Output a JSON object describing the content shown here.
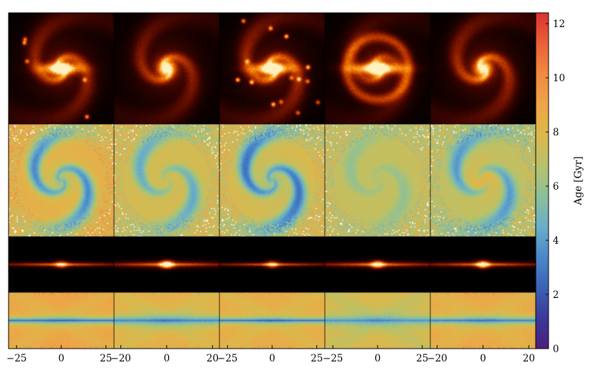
{
  "chart_data": {
    "type": "heatmap",
    "panel_grid": {
      "rows": 4,
      "columns": 5
    },
    "row_content": [
      "face-on surface brightness",
      "face-on stellar age",
      "edge-on surface brightness",
      "edge-on stellar age"
    ],
    "x_ticks_per_column": [
      [
        -25,
        0,
        25
      ],
      [
        -20,
        0,
        20
      ],
      [
        -25,
        0,
        25
      ],
      [
        -25,
        0,
        25
      ],
      [
        -20,
        0,
        20
      ]
    ],
    "x_ranges_per_column": [
      [
        -29.5,
        29.5
      ],
      [
        -23,
        23
      ],
      [
        -29.5,
        29.5
      ],
      [
        -29.5,
        29.5
      ],
      [
        -23,
        23
      ]
    ],
    "galaxies": [
      {
        "face_morphology": "barred",
        "bar_width": 1.0,
        "bulge": 0.55,
        "arm_strength": 0.8,
        "clumps": 5,
        "age_center": 5.6,
        "age_arms": 3.5,
        "age_outskirt": 8.5,
        "edge_thickness": 0.7,
        "edge_age_disk": 2.6,
        "edge_age_halo": 9.0
      },
      {
        "face_morphology": "spiral",
        "bar_width": 0.0,
        "bulge": 1.0,
        "arm_strength": 0.7,
        "clumps": 0,
        "age_center": 7.4,
        "age_arms": 3.8,
        "age_outskirt": 7.6,
        "edge_thickness": 1.0,
        "edge_age_disk": 3.2,
        "edge_age_halo": 8.4
      },
      {
        "face_morphology": "barred-clumpy",
        "bar_width": 1.0,
        "bulge": 0.6,
        "arm_strength": 0.9,
        "clumps": 14,
        "age_center": 5.4,
        "age_arms": 3.3,
        "age_outskirt": 7.8,
        "edge_thickness": 0.6,
        "edge_age_disk": 2.5,
        "edge_age_halo": 8.6
      },
      {
        "face_morphology": "barred-ring",
        "bar_width": 1.25,
        "bulge": 0.8,
        "arm_strength": 0.55,
        "clumps": 0,
        "age_center": 6.8,
        "age_arms": 5.2,
        "age_outskirt": 7.2,
        "edge_thickness": 0.9,
        "edge_age_disk": 3.6,
        "edge_age_halo": 7.8
      },
      {
        "face_morphology": "spiral",
        "bar_width": 0.0,
        "bulge": 0.9,
        "arm_strength": 0.85,
        "clumps": 0,
        "age_center": 8.5,
        "age_arms": 3.8,
        "age_outskirt": 7.0,
        "edge_thickness": 0.8,
        "edge_age_disk": 3.0,
        "edge_age_halo": 8.8
      }
    ],
    "colorbar": {
      "label": "Age [Gyr]",
      "range": [
        0,
        12.4
      ],
      "ticks": [
        0,
        2,
        4,
        6,
        8,
        10,
        12
      ],
      "colormap": [
        "#4a1e7e",
        "#3a3a9a",
        "#3b62b5",
        "#4a88c8",
        "#6aaec8",
        "#8cc09a",
        "#b8c26a",
        "#ddb84a",
        "#eea548",
        "#ef8a40",
        "#e96136",
        "#dc3030"
      ]
    },
    "brightness_colormap": [
      "#000000",
      "#3a0400",
      "#7a1500",
      "#b83600",
      "#e26300",
      "#f79418",
      "#ffc860",
      "#fff2c0"
    ]
  }
}
